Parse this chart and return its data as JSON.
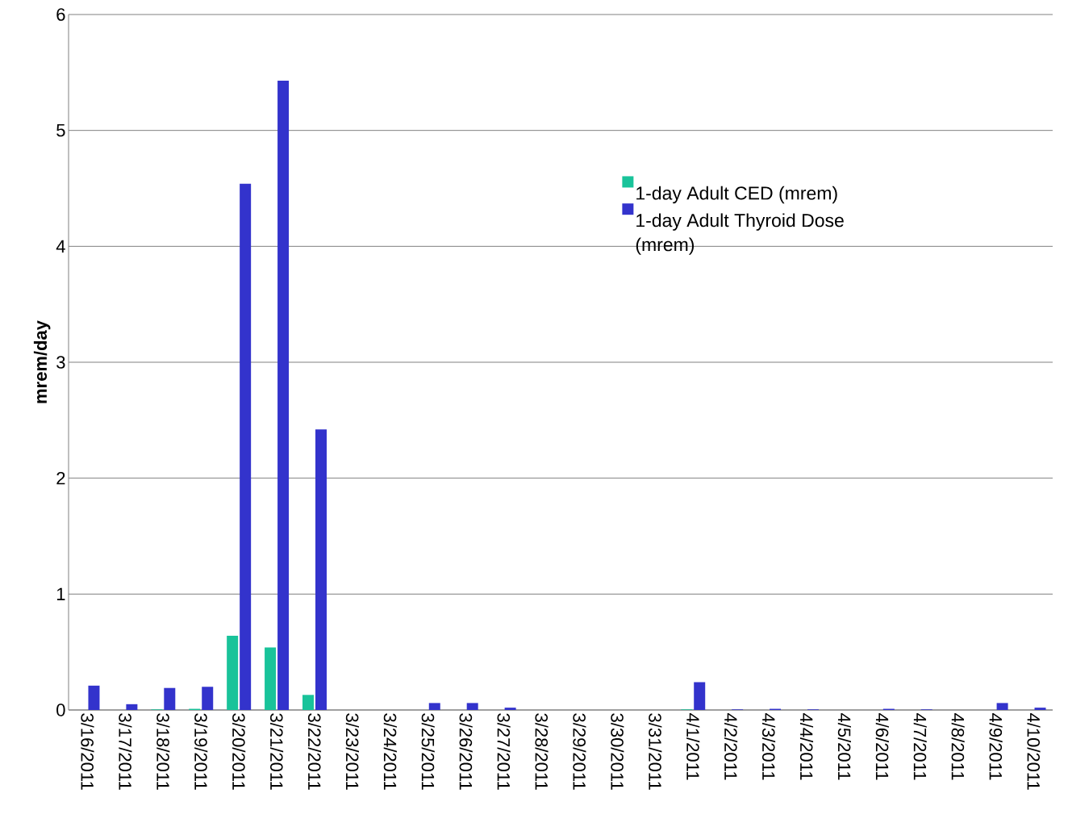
{
  "chart_data": {
    "type": "bar",
    "ylabel": "mrem/day",
    "categories": [
      "3/16/2011",
      "3/17/2011",
      "3/18/2011",
      "3/19/2011",
      "3/20/2011",
      "3/21/2011",
      "3/22/2011",
      "3/23/2011",
      "3/24/2011",
      "3/25/2011",
      "3/26/2011",
      "3/27/2011",
      "3/28/2011",
      "3/29/2011",
      "3/30/2011",
      "3/31/2011",
      "4/1/2011",
      "4/2/2011",
      "4/3/2011",
      "4/4/2011",
      "4/5/2011",
      "4/6/2011",
      "4/7/2011",
      "4/8/2011",
      "4/9/2011",
      "4/10/2011"
    ],
    "series": [
      {
        "name": "1-day Adult CED (mrem)",
        "color": "#19c39a",
        "values": [
          0,
          0,
          0.005,
          0.01,
          0.64,
          0.54,
          0.13,
          0,
          0,
          0,
          0,
          0,
          0,
          0,
          0,
          0,
          0.005,
          0,
          0,
          0,
          0,
          0,
          0,
          0,
          0,
          0
        ]
      },
      {
        "name": "1-day Adult Thyroid Dose (mrem)",
        "color": "#3333cc",
        "values": [
          0.21,
          0.05,
          0.19,
          0.2,
          4.54,
          5.43,
          2.42,
          0,
          0,
          0.06,
          0.06,
          0.02,
          0,
          0,
          0,
          0,
          0.24,
          0.005,
          0.01,
          0.005,
          0,
          0.01,
          0.005,
          0,
          0.06,
          0.02
        ]
      }
    ],
    "ylim": [
      0,
      6
    ],
    "yticks": [
      0,
      1,
      2,
      3,
      4,
      5,
      6
    ],
    "grid": "y",
    "legend": "top right"
  }
}
